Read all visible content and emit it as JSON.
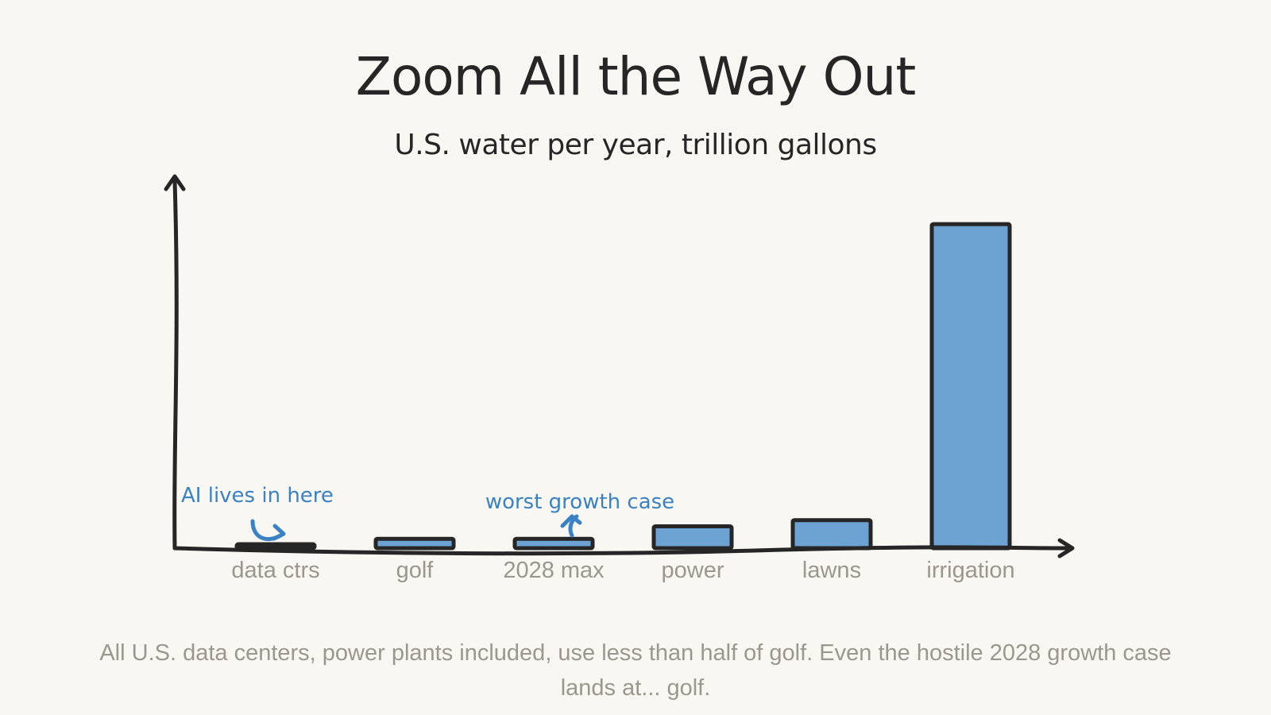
{
  "chart_data": {
    "type": "bar",
    "title": "Zoom All the Way Out",
    "subtitle": "U.S. water per year, trillion gallons",
    "categories": [
      "data ctrs",
      "golf",
      "2028 max",
      "power",
      "lawns",
      "irrigation"
    ],
    "values": [
      0.06,
      0.15,
      0.15,
      0.35,
      0.45,
      5.2
    ],
    "ylim": [
      0,
      5.8
    ],
    "xlabel": "",
    "ylabel": "",
    "grid": false,
    "annotations": [
      {
        "text": "AI lives in here",
        "target": "data ctrs"
      },
      {
        "text": "worst growth case",
        "target": "2028 max"
      }
    ],
    "caption": "All U.S. data centers, power plants included, use less than half of golf. Even the hostile 2028 growth case lands at... golf."
  },
  "colors": {
    "background": "#f9f7f1",
    "bar_fill": "#6ca3d3",
    "outline": "#262626",
    "annotation": "#3a82c4",
    "muted_text": "#9a978e"
  }
}
